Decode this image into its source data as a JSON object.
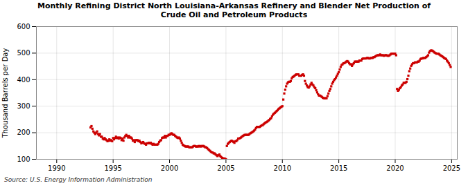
{
  "chart_data": {
    "type": "scatter",
    "title": "Monthly Refining District North Louisiana-Arkansas Refinery and Blender Net Production of\nCrude Oil and Petroleum Products",
    "ylabel": "Thousand Barrels per Day",
    "source": "Source: U.S. Energy Information Administration",
    "color": "#cc0000",
    "marker": "square",
    "grid": true,
    "xlim": [
      1988.2,
      2025.5
    ],
    "xticks": [
      1990,
      1995,
      2000,
      2005,
      2010,
      2015,
      2020,
      2025
    ],
    "ylim": [
      100,
      600
    ],
    "yticks": [
      100,
      200,
      300,
      400,
      500,
      600
    ],
    "x": [
      1993.0,
      1993.083,
      1993.167,
      1993.25,
      1993.333,
      1993.417,
      1993.5,
      1993.583,
      1993.667,
      1993.75,
      1993.833,
      1993.917,
      1994.0,
      1994.083,
      1994.167,
      1994.25,
      1994.333,
      1994.417,
      1994.5,
      1994.583,
      1994.667,
      1994.75,
      1994.833,
      1994.917,
      1995.0,
      1995.083,
      1995.167,
      1995.25,
      1995.333,
      1995.417,
      1995.5,
      1995.583,
      1995.667,
      1995.75,
      1995.833,
      1995.917,
      1996.0,
      1996.083,
      1996.167,
      1996.25,
      1996.333,
      1996.417,
      1996.5,
      1996.583,
      1996.667,
      1996.75,
      1996.833,
      1996.917,
      1997.0,
      1997.083,
      1997.167,
      1997.25,
      1997.333,
      1997.417,
      1997.5,
      1997.583,
      1997.667,
      1997.75,
      1997.833,
      1997.917,
      1998.0,
      1998.083,
      1998.167,
      1998.25,
      1998.333,
      1998.417,
      1998.5,
      1998.583,
      1998.667,
      1998.75,
      1998.833,
      1998.917,
      1999.0,
      1999.083,
      1999.167,
      1999.25,
      1999.333,
      1999.417,
      1999.5,
      1999.583,
      1999.667,
      1999.75,
      1999.833,
      1999.917,
      2000.0,
      2000.083,
      2000.167,
      2000.25,
      2000.333,
      2000.417,
      2000.5,
      2000.583,
      2000.667,
      2000.75,
      2000.833,
      2000.917,
      2001.0,
      2001.083,
      2001.167,
      2001.25,
      2001.333,
      2001.417,
      2001.5,
      2001.583,
      2001.667,
      2001.75,
      2001.833,
      2001.917,
      2002.0,
      2002.083,
      2002.167,
      2002.25,
      2002.333,
      2002.417,
      2002.5,
      2002.583,
      2002.667,
      2002.75,
      2002.833,
      2002.917,
      2003.0,
      2003.083,
      2003.167,
      2003.25,
      2003.333,
      2003.417,
      2003.5,
      2003.583,
      2003.667,
      2003.75,
      2003.833,
      2003.917,
      2004.0,
      2004.083,
      2004.167,
      2004.25,
      2004.333,
      2004.417,
      2004.5,
      2004.583,
      2004.667,
      2004.75,
      2004.833,
      2004.917,
      2005.0,
      2005.083,
      2005.167,
      2005.25,
      2005.333,
      2005.417,
      2005.5,
      2005.583,
      2005.667,
      2005.75,
      2005.833,
      2005.917,
      2006.0,
      2006.083,
      2006.167,
      2006.25,
      2006.333,
      2006.417,
      2006.5,
      2006.583,
      2006.667,
      2006.75,
      2006.833,
      2006.917,
      2007.0,
      2007.083,
      2007.167,
      2007.25,
      2007.333,
      2007.417,
      2007.5,
      2007.583,
      2007.667,
      2007.75,
      2007.833,
      2007.917,
      2008.0,
      2008.083,
      2008.167,
      2008.25,
      2008.333,
      2008.417,
      2008.5,
      2008.583,
      2008.667,
      2008.75,
      2008.833,
      2008.917,
      2009.0,
      2009.083,
      2009.167,
      2009.25,
      2009.333,
      2009.417,
      2009.5,
      2009.583,
      2009.667,
      2009.75,
      2009.833,
      2009.917,
      2010.0,
      2010.083,
      2010.167,
      2010.25,
      2010.333,
      2010.417,
      2010.5,
      2010.583,
      2010.667,
      2010.75,
      2010.833,
      2010.917,
      2011.0,
      2011.083,
      2011.167,
      2011.25,
      2011.333,
      2011.417,
      2011.5,
      2011.583,
      2011.667,
      2011.75,
      2011.833,
      2011.917,
      2012.0,
      2012.083,
      2012.167,
      2012.25,
      2012.333,
      2012.417,
      2012.5,
      2012.583,
      2012.667,
      2012.75,
      2012.833,
      2012.917,
      2013.0,
      2013.083,
      2013.167,
      2013.25,
      2013.333,
      2013.417,
      2013.5,
      2013.583,
      2013.667,
      2013.75,
      2013.833,
      2013.917,
      2014.0,
      2014.083,
      2014.167,
      2014.25,
      2014.333,
      2014.417,
      2014.5,
      2014.583,
      2014.667,
      2014.75,
      2014.833,
      2014.917,
      2015.0,
      2015.083,
      2015.167,
      2015.25,
      2015.333,
      2015.417,
      2015.5,
      2015.583,
      2015.667,
      2015.75,
      2015.833,
      2015.917,
      2016.0,
      2016.083,
      2016.167,
      2016.25,
      2016.333,
      2016.417,
      2016.5,
      2016.583,
      2016.667,
      2016.75,
      2016.833,
      2016.917,
      2017.0,
      2017.083,
      2017.167,
      2017.25,
      2017.333,
      2017.417,
      2017.5,
      2017.583,
      2017.667,
      2017.75,
      2017.833,
      2017.917,
      2018.0,
      2018.083,
      2018.167,
      2018.25,
      2018.333,
      2018.417,
      2018.5,
      2018.583,
      2018.667,
      2018.75,
      2018.833,
      2018.917,
      2019.0,
      2019.083,
      2019.167,
      2019.25,
      2019.333,
      2019.417,
      2019.5,
      2019.583,
      2019.667,
      2019.75,
      2019.833,
      2019.917,
      2020.0,
      2020.083,
      2020.167,
      2020.25,
      2020.333,
      2020.417,
      2020.5,
      2020.583,
      2020.667,
      2020.75,
      2020.833,
      2020.917,
      2021.0,
      2021.083,
      2021.167,
      2021.25,
      2021.333,
      2021.417,
      2021.5,
      2021.583,
      2021.667,
      2021.75,
      2021.833,
      2021.917,
      2022.0,
      2022.083,
      2022.167,
      2022.25,
      2022.333,
      2022.417,
      2022.5,
      2022.583,
      2022.667,
      2022.75,
      2022.833,
      2022.917,
      2023.0,
      2023.083,
      2023.167,
      2023.25,
      2023.333,
      2023.417,
      2023.5,
      2023.583,
      2023.667,
      2023.75,
      2023.833,
      2023.917,
      2024.0,
      2024.083,
      2024.167,
      2024.25,
      2024.333,
      2024.417,
      2024.5,
      2024.583,
      2024.667,
      2024.75,
      2024.833,
      2024.917
    ],
    "values": [
      220,
      225,
      215,
      205,
      200,
      195,
      200,
      205,
      195,
      190,
      195,
      185,
      185,
      178,
      175,
      180,
      175,
      172,
      168,
      170,
      175,
      170,
      172,
      168,
      180,
      175,
      180,
      185,
      180,
      182,
      178,
      182,
      180,
      172,
      178,
      170,
      182,
      188,
      192,
      188,
      182,
      188,
      182,
      182,
      178,
      170,
      172,
      165,
      172,
      172,
      172,
      168,
      170,
      165,
      160,
      162,
      165,
      160,
      158,
      155,
      160,
      160,
      162,
      160,
      162,
      158,
      155,
      158,
      155,
      155,
      155,
      155,
      158,
      165,
      170,
      172,
      180,
      182,
      182,
      188,
      182,
      188,
      188,
      192,
      192,
      195,
      198,
      195,
      192,
      192,
      188,
      185,
      182,
      180,
      182,
      178,
      170,
      162,
      155,
      152,
      150,
      148,
      148,
      148,
      148,
      145,
      145,
      145,
      145,
      148,
      150,
      150,
      148,
      148,
      148,
      150,
      148,
      150,
      148,
      150,
      150,
      148,
      145,
      145,
      142,
      138,
      135,
      132,
      128,
      126,
      125,
      122,
      122,
      118,
      115,
      112,
      115,
      118,
      112,
      108,
      105,
      103,
      103,
      102,
      100,
      150,
      158,
      162,
      165,
      168,
      170,
      168,
      165,
      162,
      168,
      168,
      172,
      178,
      178,
      180,
      182,
      185,
      188,
      190,
      192,
      192,
      192,
      192,
      192,
      195,
      198,
      200,
      202,
      205,
      208,
      212,
      218,
      222,
      222,
      222,
      222,
      225,
      228,
      228,
      232,
      235,
      238,
      240,
      242,
      245,
      248,
      252,
      255,
      262,
      268,
      272,
      275,
      278,
      282,
      285,
      290,
      292,
      295,
      298,
      300,
      325,
      348,
      362,
      375,
      385,
      390,
      392,
      392,
      395,
      405,
      410,
      412,
      415,
      418,
      420,
      420,
      420,
      415,
      415,
      415,
      418,
      420,
      415,
      395,
      385,
      378,
      372,
      370,
      375,
      382,
      388,
      382,
      378,
      372,
      368,
      360,
      352,
      345,
      340,
      340,
      338,
      335,
      332,
      330,
      330,
      330,
      330,
      338,
      348,
      358,
      365,
      375,
      385,
      392,
      398,
      402,
      408,
      415,
      422,
      428,
      438,
      448,
      455,
      458,
      462,
      462,
      465,
      468,
      470,
      468,
      462,
      458,
      458,
      452,
      458,
      462,
      468,
      468,
      468,
      468,
      468,
      472,
      472,
      472,
      478,
      480,
      480,
      480,
      480,
      482,
      482,
      480,
      480,
      482,
      482,
      482,
      485,
      485,
      488,
      490,
      492,
      492,
      492,
      495,
      492,
      492,
      492,
      490,
      492,
      492,
      492,
      490,
      490,
      492,
      495,
      498,
      498,
      498,
      498,
      498,
      492,
      365,
      358,
      362,
      368,
      372,
      378,
      382,
      388,
      388,
      388,
      392,
      402,
      415,
      432,
      442,
      452,
      458,
      462,
      462,
      465,
      465,
      465,
      468,
      468,
      472,
      478,
      480,
      480,
      482,
      482,
      482,
      485,
      488,
      492,
      502,
      508,
      510,
      510,
      508,
      505,
      502,
      500,
      498,
      498,
      498,
      495,
      492,
      490,
      488,
      485,
      482,
      480,
      478,
      472,
      468,
      462,
      455,
      448
    ]
  }
}
